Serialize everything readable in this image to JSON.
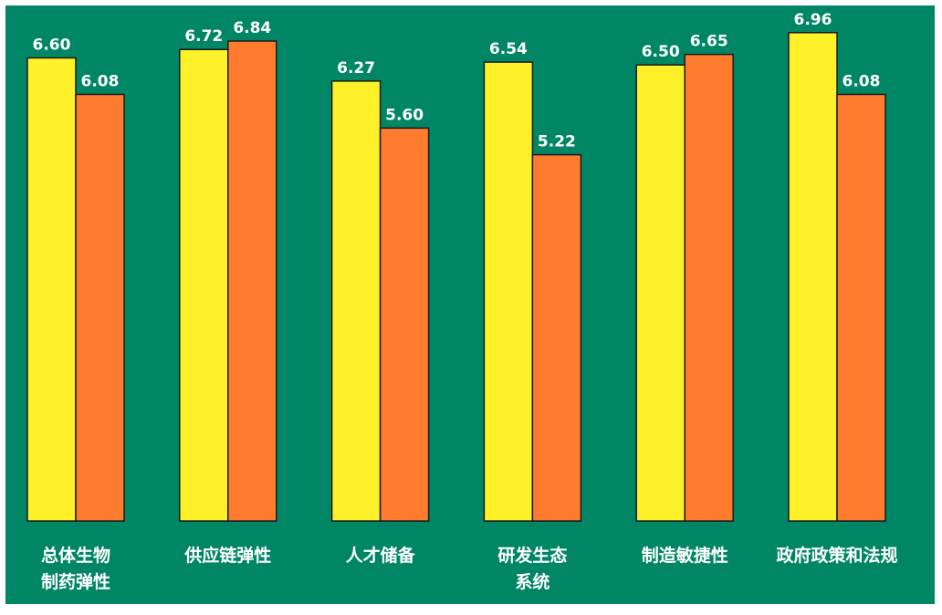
{
  "chart_data": {
    "type": "bar",
    "categories": [
      [
        "总体生物",
        "制药弹性"
      ],
      [
        "供应链弹性"
      ],
      [
        "人才储备"
      ],
      [
        "研发生态",
        "系统"
      ],
      [
        "制造敏捷性"
      ],
      [
        "政府政策和法规"
      ]
    ],
    "series": [
      {
        "color": "#FFF129",
        "values": [
          6.6,
          6.72,
          6.27,
          6.54,
          6.5,
          6.96
        ],
        "labels": [
          "6.60",
          "6.72",
          "6.27",
          "6.54",
          "6.50",
          "6.96"
        ]
      },
      {
        "color": "#FF7B2E",
        "values": [
          6.08,
          6.84,
          5.6,
          5.22,
          6.65,
          6.08
        ],
        "labels": [
          "6.08",
          "6.84",
          "5.60",
          "5.22",
          "6.65",
          "6.08"
        ]
      }
    ],
    "title": "",
    "xlabel": "",
    "ylabel": "",
    "grid": false,
    "legend": "none",
    "background_color": "#008665"
  }
}
